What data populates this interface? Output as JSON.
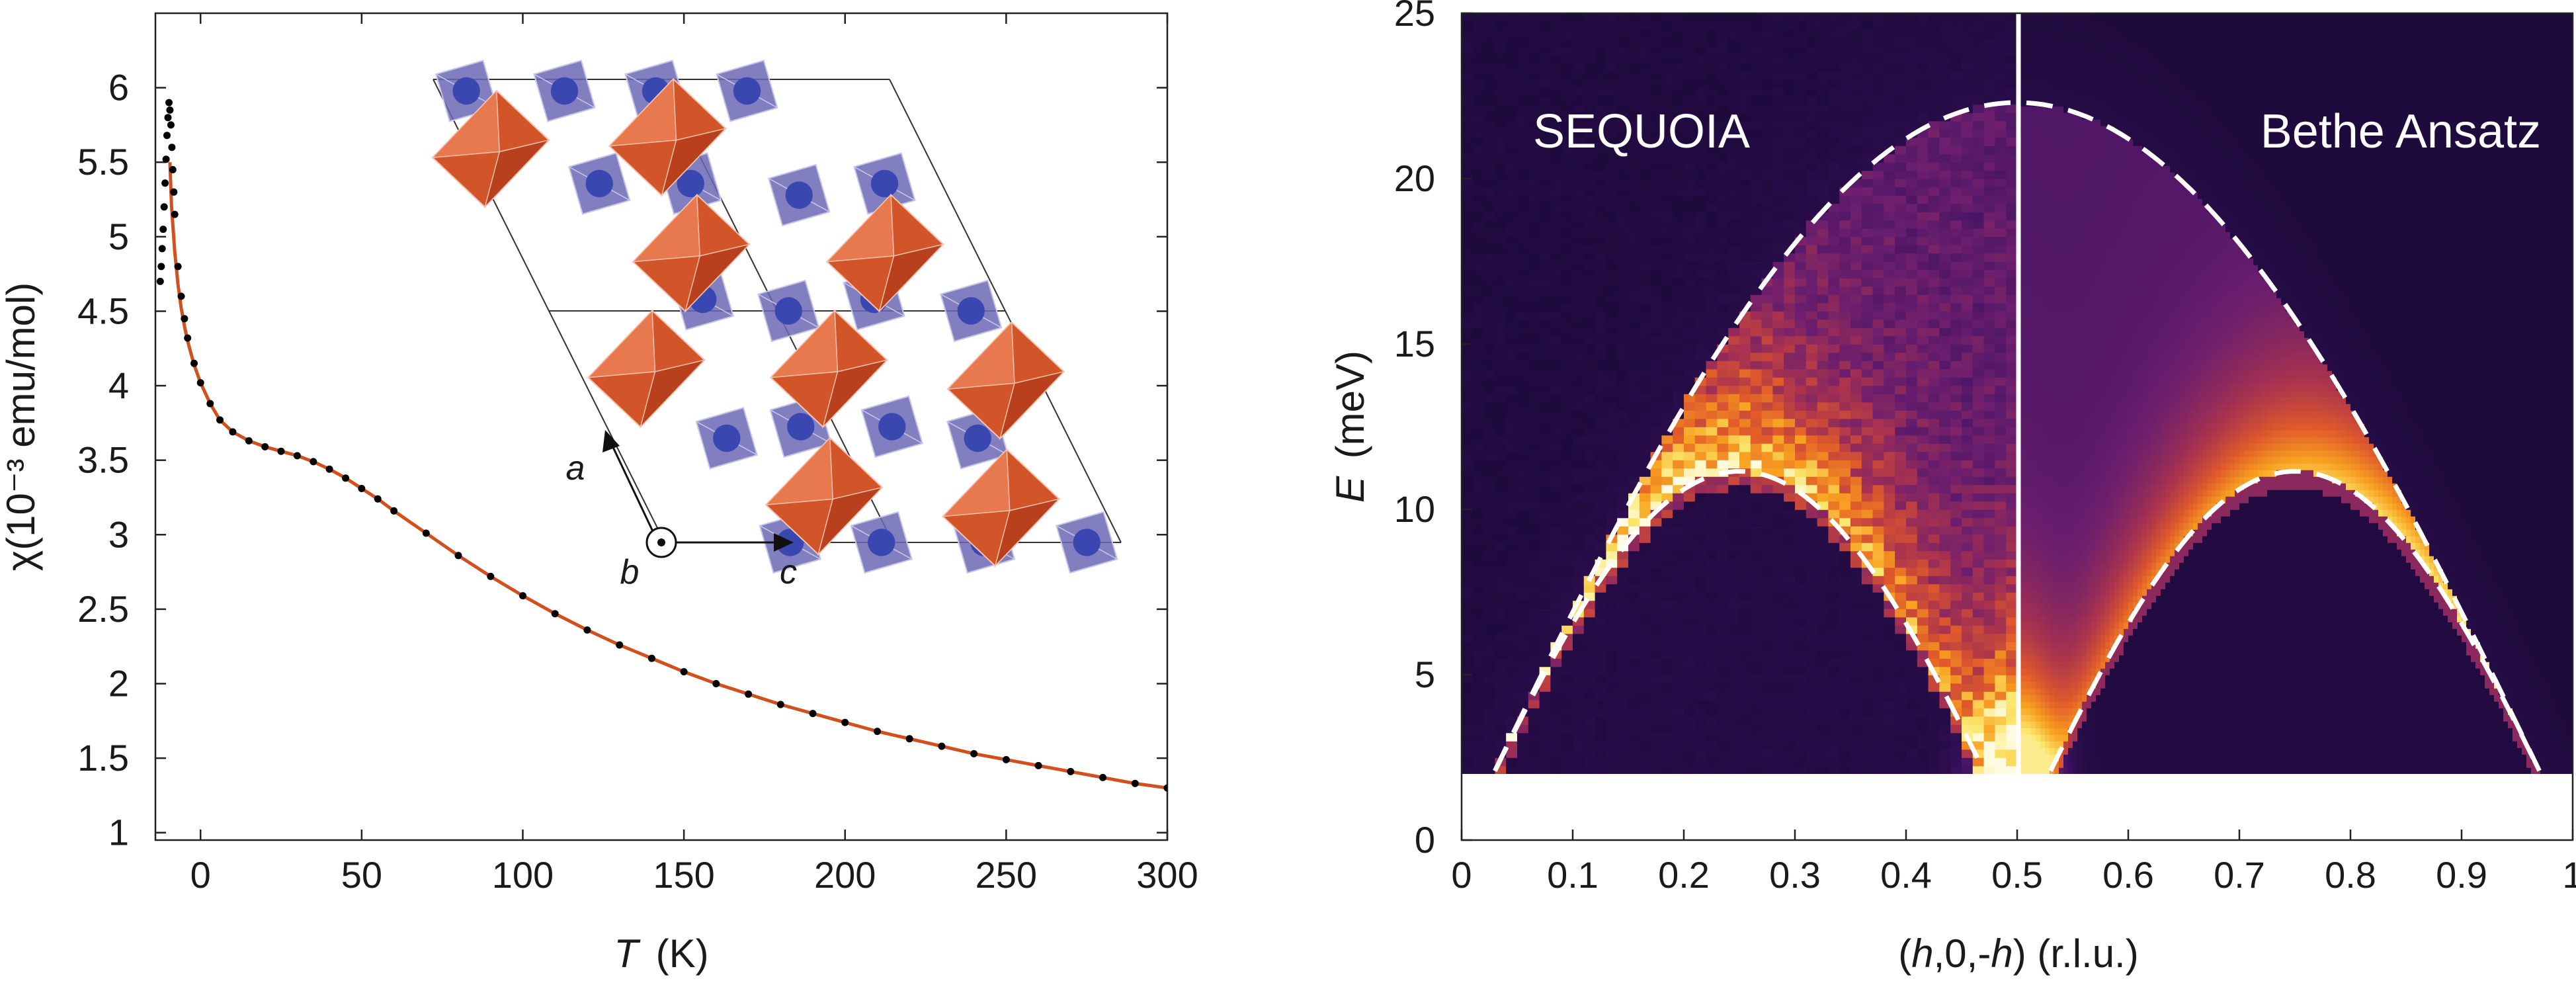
{
  "chart_data": [
    {
      "type": "scatter",
      "title": "",
      "xlabel": {
        "symbol": "T",
        "unit": "(K)"
      },
      "ylabel": "χ(10⁻³ emu/mol)",
      "xlim": [
        -14,
        300
      ],
      "ylim": [
        0.95,
        6.5
      ],
      "xticks": [
        "0",
        "50",
        "100",
        "150",
        "200",
        "250",
        "300"
      ],
      "xtick_values": [
        0,
        50,
        100,
        150,
        200,
        250,
        300
      ],
      "yticks": [
        "1",
        "1.5",
        "2",
        "2.5",
        "3",
        "3.5",
        "4",
        "4.5",
        "5",
        "5.5",
        "6"
      ],
      "ytick_values": [
        1,
        1.5,
        2,
        2.5,
        3,
        3.5,
        4,
        4.5,
        5,
        5.5,
        6
      ],
      "grid": false,
      "series": [
        {
          "kind": "points",
          "color": "#000000",
          "x": [
            -12.5,
            -12.2,
            -11.9,
            -11.6,
            -11.3,
            -11.0,
            -10.7,
            -10.4,
            -10.1,
            -9.8,
            -9.5,
            -9.2,
            -8.9,
            -8.6,
            -8.3,
            -8,
            -7,
            -6,
            -5,
            -4,
            -2,
            0,
            3,
            6,
            10,
            15,
            20,
            25,
            30,
            35,
            40,
            45,
            50,
            55,
            60,
            70,
            80,
            90,
            100,
            110,
            120,
            130,
            140,
            150,
            160,
            170,
            180,
            190,
            200,
            210,
            220,
            230,
            240,
            250,
            260,
            270,
            280,
            290,
            300
          ],
          "y": [
            4.7,
            4.8,
            4.92,
            5.05,
            5.2,
            5.36,
            5.52,
            5.68,
            5.8,
            5.9,
            5.85,
            5.75,
            5.6,
            5.45,
            5.3,
            5.15,
            4.8,
            4.6,
            4.45,
            4.32,
            4.15,
            4.02,
            3.88,
            3.77,
            3.69,
            3.63,
            3.59,
            3.56,
            3.53,
            3.49,
            3.44,
            3.38,
            3.31,
            3.24,
            3.16,
            3.01,
            2.86,
            2.72,
            2.59,
            2.47,
            2.36,
            2.26,
            2.17,
            2.08,
            2.0,
            1.93,
            1.86,
            1.8,
            1.74,
            1.68,
            1.63,
            1.58,
            1.53,
            1.49,
            1.45,
            1.41,
            1.37,
            1.33,
            1.3
          ]
        },
        {
          "kind": "line",
          "color": "#d2501e",
          "x": [
            -9.5,
            -9,
            -8,
            -7,
            -6,
            -5,
            -4,
            -2,
            0,
            3,
            6,
            10,
            15,
            20,
            25,
            30,
            35,
            40,
            45,
            50,
            55,
            60,
            70,
            80,
            90,
            100,
            110,
            120,
            130,
            140,
            150,
            160,
            170,
            180,
            190,
            200,
            210,
            220,
            230,
            240,
            250,
            260,
            270,
            280,
            290,
            300
          ],
          "y": [
            5.5,
            5.2,
            4.9,
            4.68,
            4.52,
            4.4,
            4.3,
            4.14,
            4.02,
            3.88,
            3.77,
            3.69,
            3.63,
            3.59,
            3.56,
            3.53,
            3.49,
            3.44,
            3.38,
            3.31,
            3.24,
            3.16,
            3.01,
            2.86,
            2.72,
            2.59,
            2.47,
            2.36,
            2.26,
            2.17,
            2.08,
            2.0,
            1.93,
            1.86,
            1.8,
            1.74,
            1.68,
            1.63,
            1.58,
            1.53,
            1.49,
            1.45,
            1.41,
            1.37,
            1.33,
            1.3
          ]
        }
      ],
      "inset": {
        "type": "crystal-structure",
        "axis_labels": [
          "a",
          "b",
          "c"
        ],
        "colors": {
          "octahedron": "#d2552a",
          "square": "#6b68b4",
          "atom": "#3a47b0"
        }
      }
    },
    {
      "type": "heatmap",
      "title": "",
      "xlabel": {
        "prefix": "(",
        "h1": "h",
        "mid": ",0,-",
        "h2": "h",
        "suffix": ") (r.l.u.)"
      },
      "ylabel": {
        "symbol": "E",
        "unit": "(meV)"
      },
      "xlim": [
        0,
        1
      ],
      "ylim": [
        0,
        25
      ],
      "xticks": [
        "0",
        "0.1",
        "0.2",
        "0.3",
        "0.4",
        "0.5",
        "0.6",
        "0.7",
        "0.8",
        "0.9",
        "1"
      ],
      "xtick_values": [
        0,
        0.1,
        0.2,
        0.3,
        0.4,
        0.5,
        0.6,
        0.7,
        0.8,
        0.9,
        1.0
      ],
      "yticks": [
        "0",
        "5",
        "10",
        "15",
        "20",
        "25"
      ],
      "ytick_values": [
        0,
        5,
        10,
        15,
        20,
        25
      ],
      "energy_min_measured": 2,
      "colormap": [
        "#1e0a3c",
        "#3a1160",
        "#6b1e6e",
        "#a8324f",
        "#e05a2a",
        "#f8a020",
        "#fbe66a",
        "#fffbe0"
      ],
      "panels": [
        {
          "label": "SEQUOIA",
          "x_range": [
            0,
            0.5
          ],
          "kind": "measured"
        },
        {
          "label": "Bethe Ansatz",
          "x_range": [
            0.5,
            1
          ],
          "kind": "calculated"
        }
      ],
      "boundaries": [
        {
          "name": "upper",
          "style": "dashed",
          "color": "#ffffff",
          "formula": "E = 22.3*sin(pi*h)",
          "h": [
            0.03,
            0.1,
            0.2,
            0.3,
            0.4,
            0.5,
            0.6,
            0.7,
            0.8,
            0.9,
            0.97
          ],
          "E": [
            2.1,
            6.9,
            13.1,
            18.0,
            21.2,
            22.3,
            21.2,
            18.0,
            13.1,
            6.9,
            2.1
          ]
        },
        {
          "name": "lower",
          "style": "dashed",
          "color": "#ffffff",
          "formula": "E = 11.15*|sin(2*pi*h)|",
          "h": [
            0.03,
            0.1,
            0.15,
            0.2,
            0.25,
            0.3,
            0.35,
            0.4,
            0.47,
            0.53,
            0.6,
            0.65,
            0.7,
            0.75,
            0.8,
            0.85,
            0.9,
            0.97
          ],
          "E": [
            2.1,
            6.55,
            9.0,
            10.6,
            11.15,
            10.6,
            9.0,
            6.55,
            2.1,
            2.1,
            6.55,
            9.0,
            10.6,
            11.15,
            10.6,
            9.0,
            6.55,
            2.1
          ]
        }
      ]
    }
  ]
}
